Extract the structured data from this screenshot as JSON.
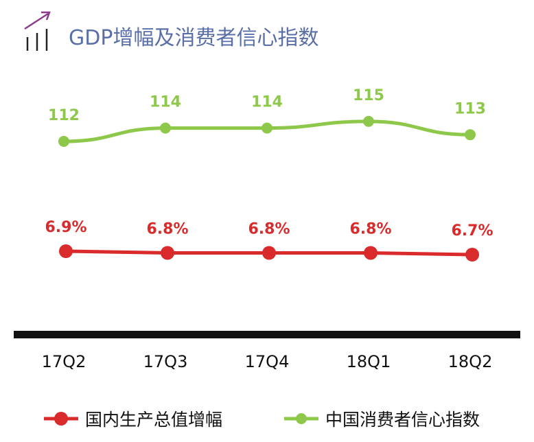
{
  "title": "GDP增幅及消费者信心指数",
  "colors": {
    "title": "#5a6fa8",
    "icon": "#8a3c8a",
    "gdp": "#d92b2b",
    "confidence": "#8ec84a",
    "axis": "#111111"
  },
  "chart_data": {
    "type": "line",
    "categories": [
      "17Q2",
      "17Q3",
      "17Q4",
      "18Q1",
      "18Q2"
    ],
    "series": [
      {
        "name": "中国消费者信心指数",
        "values": [
          112,
          114,
          114,
          115,
          113
        ],
        "labels": [
          "112",
          "114",
          "114",
          "115",
          "113"
        ]
      },
      {
        "name": "国内生产总值增幅",
        "values": [
          6.9,
          6.8,
          6.8,
          6.8,
          6.7
        ],
        "labels": [
          "6.9%",
          "6.8%",
          "6.8%",
          "6.8%",
          "6.7%"
        ]
      }
    ],
    "legend": [
      "国内生产总值增幅",
      "中国消费者信心指数"
    ],
    "legend_position": "bottom",
    "grid": false,
    "y_axis_visible": false
  }
}
